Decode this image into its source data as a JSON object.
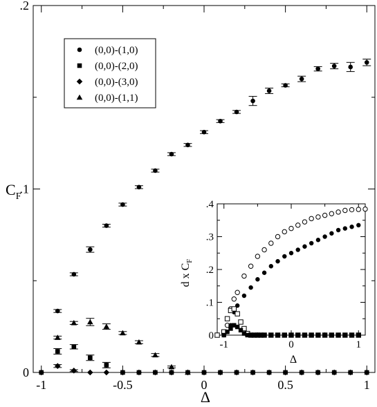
{
  "chart_data": [
    {
      "type": "scatter",
      "title": "",
      "xlabel": "Δ",
      "ylabel": "C",
      "ylabel_sub": "F",
      "xlim": [
        -1.05,
        1.05
      ],
      "ylim": [
        0,
        0.2
      ],
      "x_ticks": [
        -1,
        -0.5,
        0,
        0.5,
        1
      ],
      "x_tick_labels": [
        "-1",
        "-0.5",
        "0",
        "0.5",
        "1"
      ],
      "y_ticks": [
        0,
        0.1,
        0.2
      ],
      "y_tick_labels": [
        "0",
        ".1",
        ".2"
      ],
      "grid": false,
      "legend_position": "top-left",
      "series": [
        {
          "name": "(0,0)-(1,0)",
          "marker": "circle",
          "x": [
            -1,
            -0.9,
            -0.8,
            -0.7,
            -0.6,
            -0.5,
            -0.4,
            -0.3,
            -0.2,
            -0.1,
            0,
            0.1,
            0.2,
            0.3,
            0.4,
            0.5,
            0.6,
            0.7,
            0.8,
            0.9,
            1
          ],
          "y": [
            0,
            0.0335,
            0.0535,
            0.067,
            0.08,
            0.0915,
            0.101,
            0.11,
            0.119,
            0.124,
            0.131,
            0.137,
            0.142,
            0.148,
            0.1535,
            0.1565,
            0.16,
            0.1655,
            0.167,
            0.1665,
            0.169
          ],
          "err": [
            0,
            0.0008,
            0.0008,
            0.0015,
            0.0008,
            0.0008,
            0.0008,
            0.0008,
            0.0008,
            0.0008,
            0.0008,
            0.0008,
            0.0008,
            0.0025,
            0.0015,
            0.0008,
            0.0015,
            0.0012,
            0.0015,
            0.0025,
            0.0018
          ]
        },
        {
          "name": "(0,0)-(2,0)",
          "marker": "square",
          "x": [
            -1,
            -0.9,
            -0.8,
            -0.7,
            -0.6,
            -0.5,
            -0.4,
            -0.3,
            -0.2,
            -0.1,
            0,
            0.1,
            0.2,
            0.3,
            0.4,
            0.5,
            0.6,
            0.7,
            0.8,
            0.9,
            1
          ],
          "y": [
            0,
            0.0115,
            0.014,
            0.008,
            0.004,
            0,
            0,
            0,
            0,
            0,
            0,
            0,
            0,
            0,
            0,
            0,
            0,
            0,
            0,
            0,
            0
          ],
          "err": [
            0,
            0.0015,
            0.0012,
            0.0015,
            0.0015,
            0,
            0,
            0,
            0,
            0,
            0,
            0,
            0,
            0,
            0,
            0,
            0,
            0,
            0,
            0,
            0
          ]
        },
        {
          "name": "(0,0)-(3,0)",
          "marker": "diamond",
          "x": [
            -1,
            -0.9,
            -0.8,
            -0.7,
            -0.6,
            -0.5,
            -0.4,
            -0.3,
            -0.2,
            -0.1,
            0,
            0.1,
            0.2,
            0.3,
            0.4,
            0.5,
            0.6,
            0.7,
            0.8,
            0.9,
            1
          ],
          "y": [
            0,
            0.0035,
            0.001,
            0,
            0,
            0,
            0,
            0,
            0,
            0,
            0,
            0,
            0,
            0,
            0,
            0,
            0,
            0,
            0,
            0,
            0
          ],
          "err": [
            0,
            0.0008,
            0.0005,
            0,
            0,
            0,
            0,
            0,
            0,
            0,
            0,
            0,
            0,
            0,
            0,
            0,
            0,
            0,
            0,
            0,
            0
          ]
        },
        {
          "name": "(0,0)-(1,1)",
          "marker": "triangle",
          "x": [
            -0.9,
            -0.8,
            -0.7,
            -0.6,
            -0.5,
            -0.4,
            -0.3,
            -0.2,
            -0.1
          ],
          "y": [
            0.019,
            0.027,
            0.0275,
            0.025,
            0.0215,
            0.0165,
            0.0095,
            0.003,
            0
          ],
          "err": [
            0.0008,
            0.0008,
            0.002,
            0.0015,
            0.0008,
            0.0008,
            0.0008,
            0.0005,
            0
          ]
        }
      ]
    },
    {
      "type": "scatter",
      "title": "",
      "xlabel": "Δ",
      "ylabel": "d x C",
      "ylabel_sub": "F",
      "xlim": [
        -1.1,
        1.1
      ],
      "ylim": [
        0,
        0.4
      ],
      "x_ticks": [
        -1,
        0,
        1
      ],
      "x_tick_labels": [
        "-1",
        "0",
        "1"
      ],
      "y_ticks": [
        0,
        0.1,
        0.2,
        0.3,
        0.4
      ],
      "y_tick_labels": [
        "0",
        ".1",
        ".2",
        ".3",
        ".4"
      ],
      "grid": false,
      "series": [
        {
          "marker": "open-circle",
          "x": [
            -1,
            -0.95,
            -0.9,
            -0.85,
            -0.8,
            -0.7,
            -0.6,
            -0.5,
            -0.4,
            -0.3,
            -0.2,
            -0.1,
            0,
            0.1,
            0.2,
            0.3,
            0.4,
            0.5,
            0.6,
            0.7,
            0.8,
            0.9,
            1.0,
            1.1
          ],
          "y": [
            0.005,
            0.03,
            0.08,
            0.11,
            0.13,
            0.18,
            0.21,
            0.24,
            0.26,
            0.28,
            0.3,
            0.315,
            0.325,
            0.335,
            0.345,
            0.355,
            0.36,
            0.365,
            0.37,
            0.375,
            0.38,
            0.382,
            0.383,
            0.384
          ]
        },
        {
          "marker": "filled-circle",
          "x": [
            -1,
            -0.95,
            -0.9,
            -0.85,
            -0.8,
            -0.7,
            -0.6,
            -0.5,
            -0.4,
            -0.3,
            -0.2,
            -0.1,
            0,
            0.1,
            0.2,
            0.3,
            0.4,
            0.5,
            0.6,
            0.7,
            0.8,
            0.9,
            1.0
          ],
          "y": [
            0,
            0.01,
            0.03,
            0.07,
            0.09,
            0.12,
            0.145,
            0.17,
            0.19,
            0.21,
            0.225,
            0.24,
            0.25,
            0.26,
            0.27,
            0.28,
            0.29,
            0.3,
            0.31,
            0.32,
            0.325,
            0.33,
            0.335
          ]
        },
        {
          "marker": "open-square",
          "x": [
            -1.1,
            -1,
            -0.95,
            -0.9,
            -0.85,
            -0.8,
            -0.75,
            -0.7,
            -0.65,
            -0.6,
            -0.55,
            -0.5,
            -0.45,
            -0.4,
            -0.3,
            -0.2,
            -0.1,
            0,
            0.1,
            0.2,
            0.3,
            0.4,
            0.5,
            0.6,
            0.7,
            0.8,
            0.9,
            1.0
          ],
          "y": [
            0,
            0.01,
            0.05,
            0.075,
            0.08,
            0.065,
            0.04,
            0.02,
            0.005,
            0,
            0,
            0,
            0,
            0,
            0,
            0,
            0,
            0,
            0,
            0,
            0,
            0,
            0,
            0,
            0,
            0,
            0,
            0
          ]
        },
        {
          "marker": "filled-square",
          "x": [
            -1,
            -0.95,
            -0.9,
            -0.85,
            -0.8,
            -0.75,
            -0.7,
            -0.65,
            -0.6,
            -0.55,
            -0.5,
            -0.45,
            -0.4,
            -0.3,
            -0.2,
            -0.1,
            0,
            0.1,
            0.2,
            0.3,
            0.4,
            0.5,
            0.6,
            0.7,
            0.8,
            0.9,
            1.0
          ],
          "y": [
            0,
            0.01,
            0.02,
            0.03,
            0.025,
            0.015,
            0.005,
            0,
            0,
            0,
            0,
            0,
            0,
            0,
            0,
            0,
            0,
            0,
            0,
            0,
            0,
            0,
            0,
            0,
            0,
            0,
            0
          ]
        }
      ]
    }
  ]
}
